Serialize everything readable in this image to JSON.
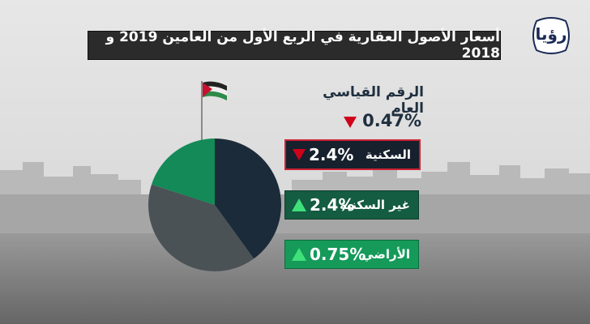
{
  "header": {
    "title": "أسعار الأصول العقارية في الربع الأول من العامين 2019 و 2018",
    "logo_text": "رؤيا"
  },
  "index": {
    "label": "الرقم القياسي العام",
    "value": "0.47%",
    "direction": "down"
  },
  "boxes": [
    {
      "label": "السكنية",
      "value": "2.4%",
      "direction": "down"
    },
    {
      "label": "غير السكنية",
      "value": "2.4%",
      "direction": "up"
    },
    {
      "label": "الأراضي",
      "value": "0.75%",
      "direction": "up"
    }
  ],
  "colors": {
    "down": "#d0021b",
    "up": "#3fe07a",
    "residential": "#17202d",
    "nonresidential": "#145c42",
    "land": "#159a5a"
  },
  "chart_data": {
    "type": "pie",
    "slices": [
      {
        "value": 40,
        "color": "#1c2b3a"
      },
      {
        "value": 40,
        "color": "#4a5256"
      },
      {
        "value": 20,
        "color": "#138a58"
      }
    ]
  }
}
